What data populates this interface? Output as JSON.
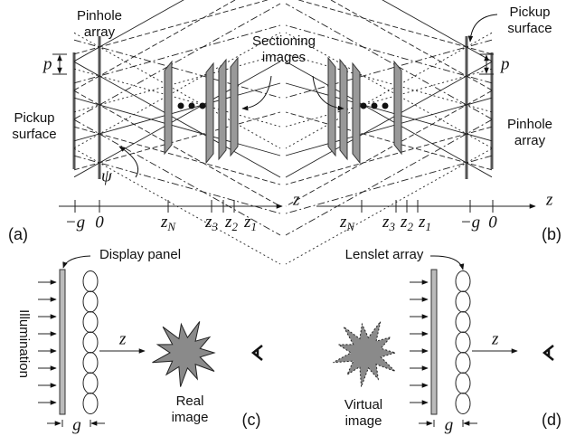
{
  "sectioning_images": [
    "Sectioning",
    "images"
  ],
  "panel_a": {
    "label": "(a)",
    "pinhole_array": [
      "Pinhole",
      "array"
    ],
    "pickup_surface": [
      "Pickup",
      "surface"
    ],
    "pitch": "p",
    "angle": "ψ",
    "axis": {
      "name": "z",
      "ticks": [
        {
          "text": "−g"
        },
        {
          "text": "0"
        },
        {
          "base": "z",
          "sub": "N"
        },
        {
          "base": "z",
          "sub": "3"
        },
        {
          "base": "z",
          "sub": "2"
        },
        {
          "base": "z",
          "sub": "1"
        }
      ]
    }
  },
  "panel_b": {
    "label": "(b)",
    "pinhole_array": [
      "Pinhole",
      "array"
    ],
    "pickup_surface": [
      "Pickup",
      "surface"
    ],
    "pitch": "p",
    "axis": {
      "name": "z",
      "ticks": [
        {
          "base": "z",
          "sub": "N"
        },
        {
          "base": "z",
          "sub": "3"
        },
        {
          "base": "z",
          "sub": "2"
        },
        {
          "base": "z",
          "sub": "1"
        },
        {
          "text": "−g"
        },
        {
          "text": "0"
        }
      ]
    }
  },
  "panel_c": {
    "label": "(c)",
    "display_panel": "Display panel",
    "illumination": "Illumination",
    "axis": "z",
    "image": [
      "Real",
      "image"
    ],
    "gap": "g"
  },
  "panel_d": {
    "label": "(d)",
    "lenslet_array": "Lenslet array",
    "axis": "z",
    "image": [
      "Virtual",
      "image"
    ],
    "gap": "g"
  }
}
